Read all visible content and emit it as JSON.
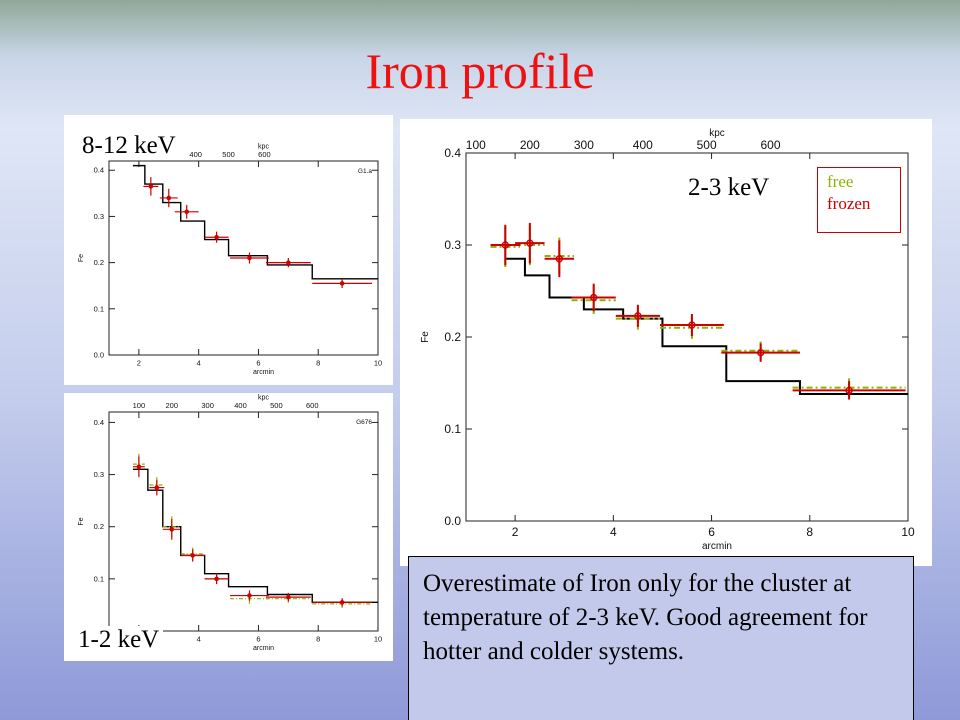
{
  "slide": {
    "title": "Iron profile",
    "note": "Overestimate of Iron only for the cluster at temperature of 2-3 keV. Good agreement for hotter and colder systems.",
    "legend": {
      "free": "free",
      "frozen": "frozen"
    },
    "colors": {
      "title": "#ee1111",
      "free": "#8ab400",
      "frozen": "#cc0000",
      "true": "#000000"
    }
  },
  "chart_data": [
    {
      "type": "line",
      "panel": "8-12 keV",
      "panel_id": "G1.a",
      "xlabel": "arcmin",
      "ylabel": "Fe",
      "top_axis_label": "kpc",
      "xlim": [
        1,
        10
      ],
      "ylim": [
        0,
        0.42
      ],
      "x_ticks": [
        "2",
        "4",
        "6",
        "8",
        "10"
      ],
      "y_ticks": [
        "0.0",
        "0.1",
        "0.2",
        "0.3",
        "0.4"
      ],
      "top_ticks": [
        {
          "label": "400",
          "x": 3.9
        },
        {
          "label": "500",
          "x": 5.0
        },
        {
          "label": "600",
          "x": 6.2
        }
      ],
      "true_profile": {
        "edges": [
          1.8,
          2.2,
          2.8,
          3.4,
          4.2,
          5.0,
          6.3,
          7.8,
          10.0
        ],
        "values": [
          0.41,
          0.37,
          0.33,
          0.29,
          0.25,
          0.215,
          0.195,
          0.165
        ]
      },
      "series": [
        {
          "name": "frozen",
          "x": [
            2.4,
            3.0,
            3.6,
            4.6,
            5.7,
            7.0,
            8.8
          ],
          "xerr": [
            0.25,
            0.3,
            0.4,
            0.4,
            0.65,
            0.75,
            1.0
          ],
          "y": [
            0.365,
            0.34,
            0.31,
            0.255,
            0.21,
            0.2,
            0.155
          ],
          "yerr": [
            0.02,
            0.02,
            0.015,
            0.012,
            0.012,
            0.01,
            0.01
          ]
        }
      ]
    },
    {
      "type": "line",
      "panel": "1-2 keV",
      "panel_id": "G676",
      "xlabel": "arcmin",
      "ylabel": "Fe",
      "top_axis_label": "kpc",
      "xlim": [
        1,
        10
      ],
      "ylim": [
        0,
        0.42
      ],
      "x_ticks": [
        "2",
        "4",
        "6",
        "8",
        "10"
      ],
      "y_ticks": [
        "0.0",
        "0.1",
        "0.2",
        "0.3",
        "0.4"
      ],
      "top_ticks": [
        {
          "label": "100",
          "x": 2.0
        },
        {
          "label": "200",
          "x": 3.1
        },
        {
          "label": "300",
          "x": 4.3
        },
        {
          "label": "400",
          "x": 5.4
        },
        {
          "label": "500",
          "x": 6.6
        },
        {
          "label": "600",
          "x": 7.8
        }
      ],
      "true_profile": {
        "edges": [
          1.8,
          2.3,
          2.8,
          3.4,
          4.2,
          5.0,
          6.3,
          7.8,
          10.0
        ],
        "values": [
          0.31,
          0.27,
          0.2,
          0.145,
          0.11,
          0.085,
          0.07,
          0.055
        ]
      },
      "series": [
        {
          "name": "free",
          "x": [
            2.0,
            2.6,
            3.1,
            3.8,
            4.6,
            5.7,
            7.0,
            8.8
          ],
          "xerr": [
            0.2,
            0.25,
            0.3,
            0.4,
            0.4,
            0.65,
            0.75,
            1.0
          ],
          "y": [
            0.32,
            0.28,
            0.2,
            0.148,
            0.1,
            0.062,
            0.062,
            0.052
          ],
          "yerr": [
            0.02,
            0.015,
            0.02,
            0.012,
            0.01,
            0.01,
            0.008,
            0.008
          ]
        },
        {
          "name": "frozen",
          "x": [
            2.0,
            2.6,
            3.1,
            3.8,
            4.6,
            5.7,
            7.0,
            8.8
          ],
          "xerr": [
            0.2,
            0.25,
            0.3,
            0.4,
            0.4,
            0.65,
            0.75,
            1.0
          ],
          "y": [
            0.315,
            0.275,
            0.195,
            0.145,
            0.1,
            0.068,
            0.065,
            0.055
          ],
          "yerr": [
            0.02,
            0.015,
            0.02,
            0.012,
            0.01,
            0.01,
            0.008,
            0.008
          ]
        }
      ]
    },
    {
      "type": "line",
      "panel": "2-3 keV",
      "xlabel": "arcmin",
      "ylabel": "Fe",
      "top_axis_label": "kpc",
      "xlim": [
        1,
        10
      ],
      "ylim": [
        0,
        0.4
      ],
      "x_ticks": [
        "2",
        "4",
        "6",
        "8",
        "10"
      ],
      "y_ticks": [
        "0.0",
        "0.1",
        "0.2",
        "0.3",
        "0.4"
      ],
      "top_ticks": [
        {
          "label": "100",
          "x": 1.2
        },
        {
          "label": "200",
          "x": 2.3
        },
        {
          "label": "300",
          "x": 3.4
        },
        {
          "label": "400",
          "x": 4.6
        },
        {
          "label": "500",
          "x": 5.9
        },
        {
          "label": "600",
          "x": 7.2
        }
      ],
      "true_profile": {
        "edges": [
          1.8,
          2.2,
          2.7,
          3.4,
          4.2,
          5.0,
          6.3,
          7.8,
          10.0
        ],
        "values": [
          0.285,
          0.267,
          0.243,
          0.23,
          0.22,
          0.19,
          0.152,
          0.138
        ]
      },
      "series": [
        {
          "name": "free",
          "x": [
            1.8,
            2.3,
            2.9,
            3.6,
            4.5,
            5.6,
            7.0,
            8.8
          ],
          "xerr": [
            0.3,
            0.3,
            0.3,
            0.45,
            0.45,
            0.65,
            0.8,
            1.15
          ],
          "y": [
            0.298,
            0.3,
            0.288,
            0.24,
            0.22,
            0.21,
            0.185,
            0.145
          ],
          "yerr": [
            0.022,
            0.022,
            0.02,
            0.015,
            0.012,
            0.012,
            0.01,
            0.01
          ]
        },
        {
          "name": "frozen",
          "x": [
            1.8,
            2.3,
            2.9,
            3.6,
            4.5,
            5.6,
            7.0,
            8.8
          ],
          "xerr": [
            0.3,
            0.3,
            0.3,
            0.45,
            0.45,
            0.65,
            0.8,
            1.15
          ],
          "y": [
            0.3,
            0.302,
            0.285,
            0.243,
            0.223,
            0.213,
            0.183,
            0.142
          ],
          "yerr": [
            0.022,
            0.022,
            0.02,
            0.015,
            0.012,
            0.012,
            0.01,
            0.01
          ]
        }
      ]
    }
  ]
}
